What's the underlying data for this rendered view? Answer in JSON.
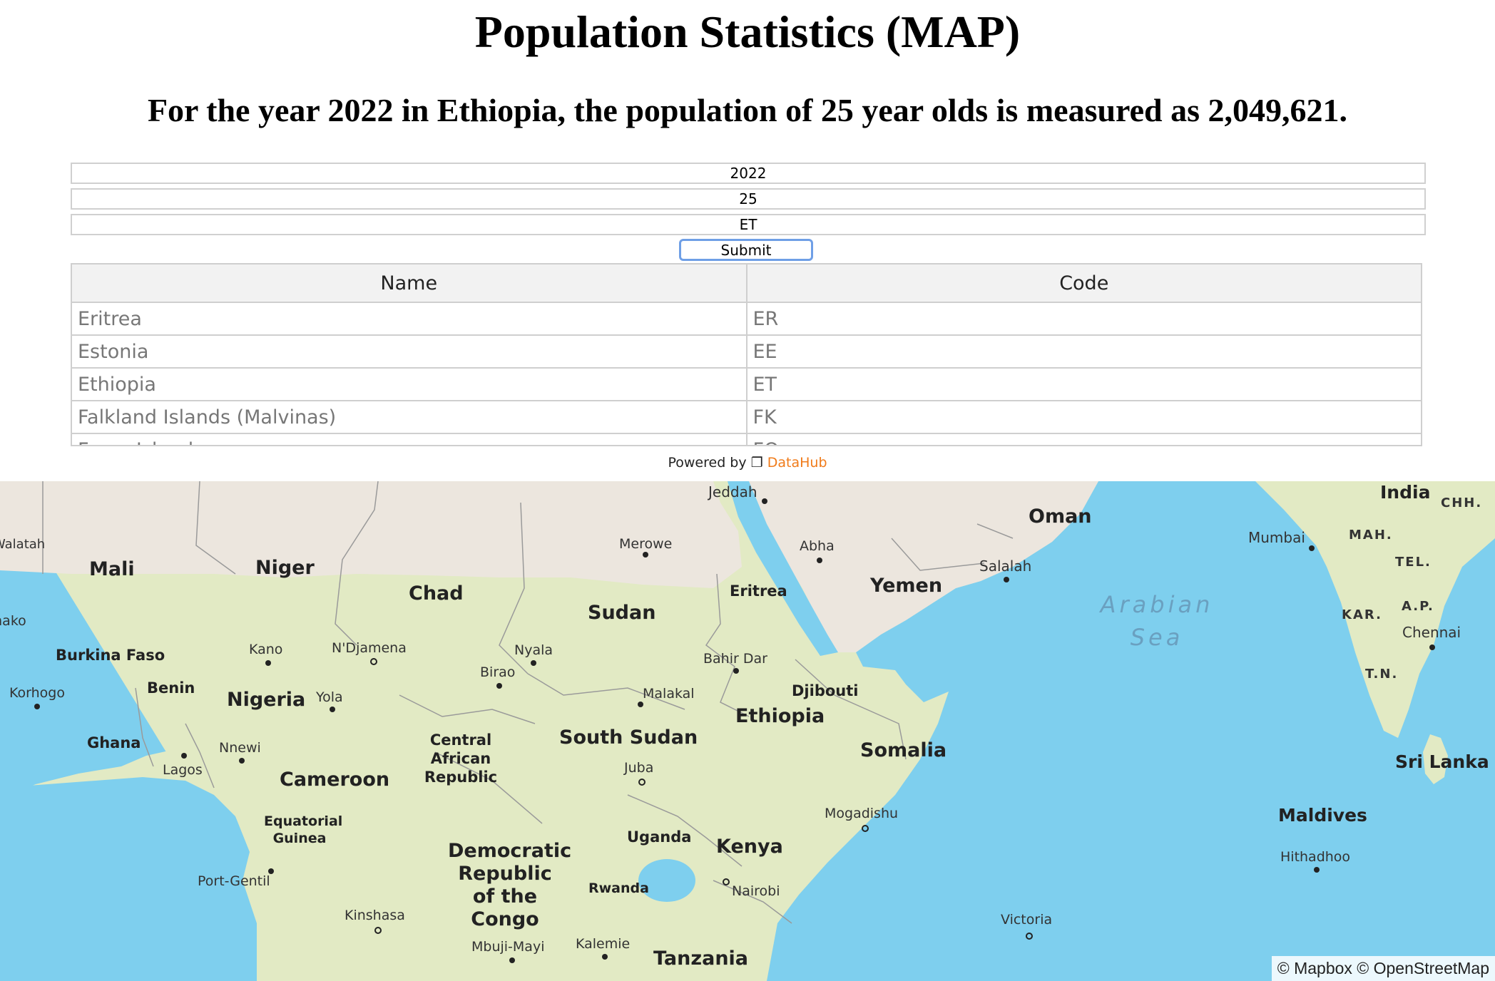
{
  "page": {
    "title": "Population Statistics (MAP)",
    "summary": "For the year 2022 in Ethiopia, the population of 25 year olds is measured as 2,049,621."
  },
  "form": {
    "year": "2022",
    "age": "25",
    "country_code": "ET",
    "submit_label": "Submit"
  },
  "table": {
    "headers": [
      "Name",
      "Code"
    ],
    "rows": [
      {
        "name": "Eritrea",
        "code": "ER"
      },
      {
        "name": "Estonia",
        "code": "EE"
      },
      {
        "name": "Ethiopia",
        "code": "ET"
      },
      {
        "name": "Falkland Islands (Malvinas)",
        "code": "FK"
      },
      {
        "name": "Faroe Islands",
        "code": "FO"
      }
    ]
  },
  "footer": {
    "powered_by": "Powered by",
    "brand_icon": "❐",
    "brand": "DataHub"
  },
  "map": {
    "colors": {
      "ocean": "#7ecfee",
      "land_north": "#ece6de",
      "land_south": "#e2eac4",
      "border": "#9a9a9a"
    },
    "countries": [
      "Mali",
      "Niger",
      "Chad",
      "Sudan",
      "Eritrea",
      "Yemen",
      "Oman",
      "India",
      "Burkina Faso",
      "Benin",
      "Nigeria",
      "Ghana",
      "Cameroon",
      "Central African Republic",
      "South Sudan",
      "Ethiopia",
      "Djibouti",
      "Somalia",
      "Equatorial Guinea",
      "Democratic Republic of the Congo",
      "Uganda",
      "Kenya",
      "Rwanda",
      "Tanzania",
      "Maldives",
      "Sri Lanka"
    ],
    "cities": [
      "Jeddah",
      "Merowe",
      "Abha",
      "Salalah",
      "Mumbai",
      "Chennai",
      "Kano",
      "N'Djamena",
      "Nyala",
      "Birao",
      "Yola",
      "Malakal",
      "Bahir Dar",
      "Korhogo",
      "Lagos",
      "Nnewi",
      "Juba",
      "Mogadishu",
      "Port-Gentil",
      "Nairobi",
      "Kinshasa",
      "Mbuji-Mayi",
      "Kalemie",
      "Hithadhoo",
      "Victoria",
      "Walatah",
      "Bamako"
    ],
    "regions": [
      "MAH.",
      "TEL.",
      "KAR.",
      "A.P.",
      "T.N.",
      "CHH."
    ],
    "sea": "Arabian Sea",
    "attribution": "© Mapbox © OpenStreetMap"
  }
}
